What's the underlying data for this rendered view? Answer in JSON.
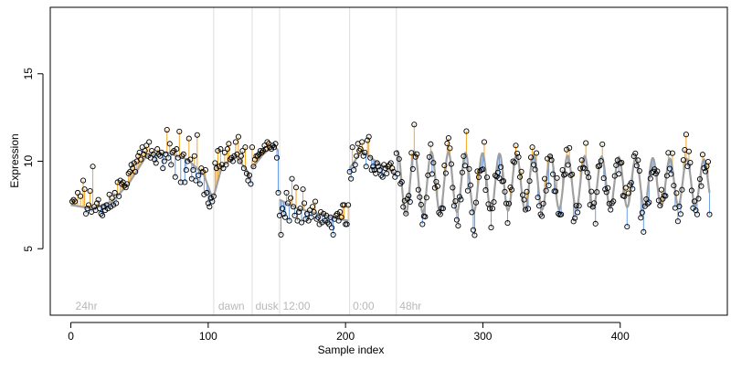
{
  "chart_data": {
    "type": "scatter",
    "title": "",
    "xlabel": "Sample index",
    "ylabel": "Expression",
    "xlim": [
      -15,
      478
    ],
    "ylim": [
      1.2,
      18.8
    ],
    "x_ticks": [
      0,
      100,
      200,
      300,
      400
    ],
    "y_ticks": [
      5,
      10,
      15
    ],
    "grid": false,
    "legend": "none",
    "phase_boundaries": [
      104,
      132,
      152,
      203,
      237
    ],
    "phase_labels": [
      {
        "x": 2,
        "label": "24hr"
      },
      {
        "x": 106,
        "label": "dawn"
      },
      {
        "x": 133,
        "label": "dusk"
      },
      {
        "x": 153,
        "label": "12:00"
      },
      {
        "x": 204,
        "label": "0:00"
      },
      {
        "x": 238,
        "label": "48hr"
      }
    ],
    "colors": {
      "fitted_line": "#a0a0a0",
      "residual_above": "#f5a623",
      "residual_below": "#6b9ee6",
      "points": "#000000",
      "phase_line": "#dddddd",
      "phase_text": "#b8b8b8"
    },
    "segments": [
      {
        "x_start": 0,
        "x_end": 103,
        "fit": [
          [
            0,
            7.5
          ],
          [
            15,
            7.3
          ],
          [
            30,
            7.7
          ],
          [
            42,
            8.7
          ],
          [
            55,
            10.3
          ],
          [
            70,
            10.5
          ],
          [
            85,
            10.1
          ],
          [
            97,
            9.2
          ],
          [
            103,
            7.9
          ]
        ]
      },
      {
        "x_start": 104,
        "x_end": 131,
        "fit": [
          [
            104,
            8.0
          ],
          [
            110,
            9.7
          ],
          [
            120,
            10.3
          ],
          [
            128,
            9.5
          ],
          [
            131,
            9.0
          ]
        ]
      },
      {
        "x_start": 132,
        "x_end": 151,
        "fit": [
          [
            132,
            9.6
          ],
          [
            140,
            10.4
          ],
          [
            148,
            10.9
          ],
          [
            151,
            10.6
          ]
        ]
      },
      {
        "x_start": 152,
        "x_end": 202,
        "fit": [
          [
            152,
            7.8
          ],
          [
            165,
            7.3
          ],
          [
            180,
            7.0
          ],
          [
            195,
            6.7
          ],
          [
            202,
            6.6
          ]
        ]
      },
      {
        "x_start": 203,
        "x_end": 236,
        "fit": [
          [
            203,
            9.6
          ],
          [
            212,
            10.6
          ],
          [
            222,
            10.0
          ],
          [
            230,
            9.6
          ],
          [
            236,
            9.3
          ]
        ]
      },
      {
        "x_start": 237,
        "x_end": 465,
        "oscillating": true,
        "baseline": 8.8,
        "amplitude": 1.8,
        "period": 12.4,
        "phase": 1.2,
        "decay_to": 0.72
      }
    ],
    "points": [
      [
        1,
        7.7
      ],
      [
        2,
        7.8
      ],
      [
        3,
        7.7
      ],
      [
        5,
        8.2
      ],
      [
        7,
        8.0
      ],
      [
        9,
        8.9
      ],
      [
        10,
        8.4
      ],
      [
        11,
        7.0
      ],
      [
        12,
        7.3
      ],
      [
        13,
        7.5
      ],
      [
        14,
        8.3
      ],
      [
        15,
        7.1
      ],
      [
        16,
        9.7
      ],
      [
        17,
        7.4
      ],
      [
        18,
        7.2
      ],
      [
        19,
        7.6
      ],
      [
        20,
        7.8
      ],
      [
        21,
        7.3
      ],
      [
        22,
        7.0
      ],
      [
        23,
        6.9
      ],
      [
        24,
        7.4
      ],
      [
        25,
        7.2
      ],
      [
        26,
        7.5
      ],
      [
        27,
        7.3
      ],
      [
        28,
        8.1
      ],
      [
        29,
        7.4
      ],
      [
        30,
        7.9
      ],
      [
        31,
        7.5
      ],
      [
        32,
        8.2
      ],
      [
        33,
        7.6
      ],
      [
        34,
        8.8
      ],
      [
        35,
        8.0
      ],
      [
        36,
        8.9
      ],
      [
        37,
        8.7
      ],
      [
        38,
        8.8
      ],
      [
        39,
        8.6
      ],
      [
        40,
        8.5
      ],
      [
        41,
        8.7
      ],
      [
        42,
        9.3
      ],
      [
        43,
        9.4
      ],
      [
        44,
        9.8
      ],
      [
        45,
        9.6
      ],
      [
        46,
        9.9
      ],
      [
        47,
        9.4
      ],
      [
        48,
        10.0
      ],
      [
        49,
        10.3
      ],
      [
        50,
        10.5
      ],
      [
        51,
        10.1
      ],
      [
        52,
        10.8
      ],
      [
        53,
        10.4
      ],
      [
        54,
        10.6
      ],
      [
        55,
        10.9
      ],
      [
        56,
        10.3
      ],
      [
        57,
        11.1
      ],
      [
        58,
        10.2
      ],
      [
        59,
        10.6
      ],
      [
        60,
        10.4
      ],
      [
        61,
        10.1
      ],
      [
        62,
        9.9
      ],
      [
        63,
        10.7
      ],
      [
        64,
        10.4
      ],
      [
        65,
        10.3
      ],
      [
        66,
        10.5
      ],
      [
        67,
        9.6
      ],
      [
        68,
        10.0
      ],
      [
        69,
        10.4
      ],
      [
        70,
        11.8
      ],
      [
        71,
        10.2
      ],
      [
        72,
        11.0
      ],
      [
        73,
        9.8
      ],
      [
        74,
        10.5
      ],
      [
        75,
        10.6
      ],
      [
        76,
        9.1
      ],
      [
        77,
        10.7
      ],
      [
        78,
        10.2
      ],
      [
        79,
        11.7
      ],
      [
        80,
        8.8
      ],
      [
        81,
        10.3
      ],
      [
        82,
        10.4
      ],
      [
        83,
        8.8
      ],
      [
        84,
        9.5
      ],
      [
        85,
        10.0
      ],
      [
        86,
        11.3
      ],
      [
        87,
        10.1
      ],
      [
        88,
        9.0
      ],
      [
        89,
        9.5
      ],
      [
        90,
        10.3
      ],
      [
        91,
        8.9
      ],
      [
        92,
        11.5
      ],
      [
        93,
        9.2
      ],
      [
        94,
        8.7
      ],
      [
        95,
        9.6
      ],
      [
        96,
        9.4
      ],
      [
        97,
        8.1
      ],
      [
        98,
        9.5
      ],
      [
        99,
        8.2
      ],
      [
        100,
        7.6
      ],
      [
        101,
        7.4
      ],
      [
        102,
        7.9
      ],
      [
        103,
        7.7
      ],
      [
        104,
        8.0
      ],
      [
        105,
        9.9
      ],
      [
        106,
        9.6
      ],
      [
        107,
        10.6
      ],
      [
        108,
        9.7
      ],
      [
        109,
        10.7
      ],
      [
        110,
        9.8
      ],
      [
        111,
        9.6
      ],
      [
        112,
        10.5
      ],
      [
        113,
        9.8
      ],
      [
        114,
        10.7
      ],
      [
        115,
        11.0
      ],
      [
        116,
        10.1
      ],
      [
        117,
        10.2
      ],
      [
        118,
        10.0
      ],
      [
        119,
        10.3
      ],
      [
        120,
        11.1
      ],
      [
        121,
        10.4
      ],
      [
        122,
        11.4
      ],
      [
        123,
        10.0
      ],
      [
        124,
        10.3
      ],
      [
        125,
        10.6
      ],
      [
        126,
        9.6
      ],
      [
        127,
        10.8
      ],
      [
        128,
        9.3
      ],
      [
        129,
        8.9
      ],
      [
        130,
        9.2
      ],
      [
        131,
        8.7
      ],
      [
        132,
        10.8
      ],
      [
        133,
        9.7
      ],
      [
        134,
        10.1
      ],
      [
        135,
        10.3
      ],
      [
        136,
        10.3
      ],
      [
        137,
        10.4
      ],
      [
        138,
        10.6
      ],
      [
        139,
        10.5
      ],
      [
        140,
        10.6
      ],
      [
        141,
        10.9
      ],
      [
        142,
        10.7
      ],
      [
        143,
        11.1
      ],
      [
        144,
        11.0
      ],
      [
        145,
        10.8
      ],
      [
        146,
        10.7
      ],
      [
        147,
        10.9
      ],
      [
        148,
        10.8
      ],
      [
        149,
        11.0
      ],
      [
        150,
        10.2
      ],
      [
        151,
        8.2
      ],
      [
        152,
        6.9
      ],
      [
        153,
        5.8
      ],
      [
        154,
        7.3
      ],
      [
        155,
        7.0
      ],
      [
        156,
        6.8
      ],
      [
        157,
        8.2
      ],
      [
        158,
        7.6
      ],
      [
        159,
        6.6
      ],
      [
        160,
        7.9
      ],
      [
        161,
        9.0
      ],
      [
        162,
        7.4
      ],
      [
        163,
        6.9
      ],
      [
        164,
        8.5
      ],
      [
        165,
        6.6
      ],
      [
        166,
        7.1
      ],
      [
        167,
        7.3
      ],
      [
        168,
        6.5
      ],
      [
        169,
        8.4
      ],
      [
        170,
        7.6
      ],
      [
        171,
        6.7
      ],
      [
        172,
        7.0
      ],
      [
        173,
        6.6
      ],
      [
        174,
        7.2
      ],
      [
        175,
        6.8
      ],
      [
        176,
        7.4
      ],
      [
        177,
        7.1
      ],
      [
        178,
        7.7
      ],
      [
        179,
        6.7
      ],
      [
        180,
        6.8
      ],
      [
        181,
        6.4
      ],
      [
        182,
        7.1
      ],
      [
        183,
        6.5
      ],
      [
        184,
        7.0
      ],
      [
        185,
        6.6
      ],
      [
        186,
        6.9
      ],
      [
        187,
        6.5
      ],
      [
        188,
        6.4
      ],
      [
        189,
        6.8
      ],
      [
        190,
        6.2
      ],
      [
        191,
        5.8
      ],
      [
        192,
        6.7
      ],
      [
        193,
        6.9
      ],
      [
        194,
        7.0
      ],
      [
        195,
        6.6
      ],
      [
        196,
        7.1
      ],
      [
        197,
        6.8
      ],
      [
        198,
        7.5
      ],
      [
        199,
        7.5
      ],
      [
        200,
        6.4
      ],
      [
        201,
        6.4
      ],
      [
        202,
        7.5
      ],
      [
        203,
        9.4
      ],
      [
        204,
        9.0
      ],
      [
        205,
        10.8
      ],
      [
        206,
        9.5
      ],
      [
        207,
        9.8
      ],
      [
        208,
        10.3
      ],
      [
        209,
        11.0
      ],
      [
        210,
        10.6
      ],
      [
        211,
        10.7
      ],
      [
        212,
        11.1
      ],
      [
        213,
        10.3
      ],
      [
        214,
        10.5
      ],
      [
        215,
        9.7
      ],
      [
        216,
        11.2
      ],
      [
        217,
        11.4
      ],
      [
        218,
        10.2
      ],
      [
        219,
        9.5
      ],
      [
        220,
        9.7
      ],
      [
        221,
        9.5
      ],
      [
        222,
        9.3
      ],
      [
        223,
        9.9
      ],
      [
        224,
        9.7
      ],
      [
        225,
        9.5
      ],
      [
        226,
        9.2
      ],
      [
        227,
        9.1
      ],
      [
        228,
        9.8
      ],
      [
        229,
        9.6
      ],
      [
        230,
        9.3
      ],
      [
        231,
        9.7
      ],
      [
        232,
        9.8
      ],
      [
        233,
        9.9
      ],
      [
        234,
        9.6
      ],
      [
        235,
        9.4
      ],
      [
        236,
        9.1
      ]
    ]
  }
}
